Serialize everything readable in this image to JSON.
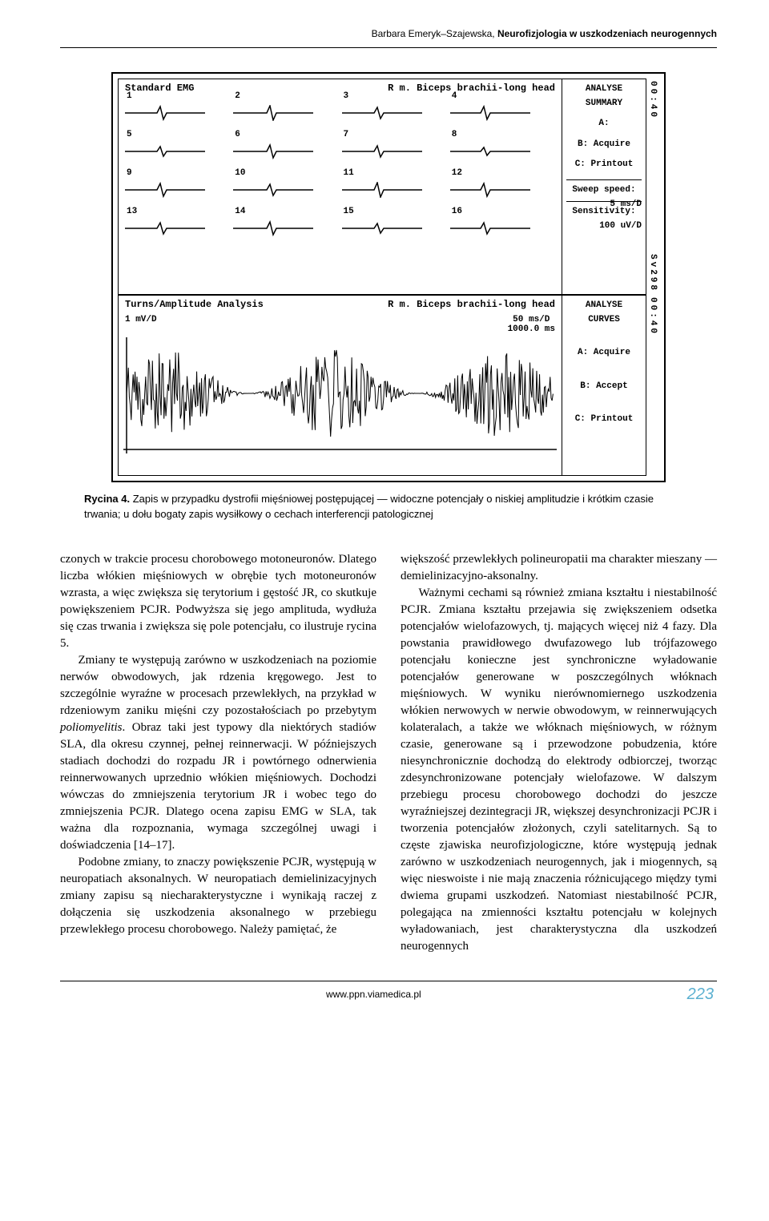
{
  "header": {
    "author": "Barbara Emeryk–Szajewska, ",
    "title": "Neurofizjologia w uszkodzeniach neurogennych"
  },
  "figure": {
    "top_panel": {
      "left_label": "Standard EMG",
      "right_label": "R m. Biceps brachii-long head",
      "side_time": "00:40",
      "side": {
        "l1": "ANALYSE",
        "l2": "SUMMARY",
        "l3": "A:",
        "l4": "B: Acquire",
        "l5": "C: Printout",
        "l6": "Sweep speed:",
        "l6b": "5 ms/D",
        "l7": "Sensitivity:",
        "l7b": "100 uV/D"
      },
      "side_bot_time": "Sv298",
      "rows": [
        [
          "1",
          "2",
          "3",
          "4"
        ],
        [
          "5",
          "6",
          "7",
          "8"
        ],
        [
          "9",
          "10",
          "11",
          "12"
        ],
        [
          "13",
          "14",
          "15",
          "16"
        ]
      ]
    },
    "bot_panel": {
      "left_label": "Turns/Amplitude Analysis",
      "right_label": "R m. Biceps brachii-long head",
      "sub_left": "1 mV/D",
      "sub_right": "50 ms/D",
      "sub_right2": "1000.0 ms",
      "side_time": "00:40",
      "side": {
        "l1": "ANALYSE",
        "l2": "CURVES",
        "l3": "A: Acquire",
        "l4": "B: Accept",
        "l5": "C: Printout"
      }
    },
    "caption_label": "Rycina 4.",
    "caption_text": " Zapis w przypadku dystrofii mięśniowej postępującej — widoczne potencjały o niskiej amplitudzie i krótkim czasie trwania; u dołu bogaty zapis wysiłkowy o cechach interferencji patologicznej"
  },
  "body": {
    "left": {
      "p1": "czonych w trakcie procesu chorobowego motoneuronów. Dlatego liczba włókien mięśniowych w obrębie tych motoneuronów wzrasta, a więc zwiększa się terytorium i gęstość JR, co skutkuje powiększeniem PCJR. Podwyższa się jego amplituda, wydłuża się czas trwania i zwiększa się pole potencjału, co ilustruje rycina 5.",
      "p2a": "Zmiany te występują zarówno w uszkodzeniach na poziomie nerwów obwodowych, jak rdzenia kręgowego. Jest to szczególnie wyraźne w procesach przewlekłych, na przykład w rdzeniowym zaniku mięśni czy pozostałościach po przebytym ",
      "p2i": "poliomyelitis",
      "p2b": ". Obraz taki jest typowy dla niektórych stadiów SLA, dla okresu czynnej, pełnej reinnerwacji. W późniejszych stadiach dochodzi do rozpadu JR i powtórnego odnerwienia reinnerwowanych uprzednio włókien mięśniowych. Dochodzi wówczas do zmniejszenia terytorium JR i wobec tego do zmniejszenia PCJR. Dlatego ocena zapisu EMG w SLA, tak ważna dla rozpoznania, wymaga szczególnej uwagi i doświadczenia [14–17].",
      "p3": "Podobne zmiany, to znaczy powiększenie PCJR, występują w neuropatiach aksonalnych. W neuropatiach demielinizacyjnych zmiany zapisu są niecharakterystyczne i wynikają raczej z dołączenia się uszkodzenia aksonalnego w przebiegu przewlekłego procesu chorobowego. Należy pamiętać, że"
    },
    "right": {
      "p1": "większość przewlekłych polineuropatii ma charakter mieszany — demielinizacyjno-aksonalny.",
      "p2": "Ważnymi cechami są również zmiana kształtu i niestabilność PCJR. Zmiana kształtu przejawia się zwiększeniem odsetka potencjałów wielofazowych, tj. mających więcej niż 4 fazy. Dla powstania prawidłowego dwufazowego lub trójfazowego potencjału konieczne jest synchroniczne wyładowanie potencjałów generowane w poszczególnych włóknach mięśniowych. W wyniku nierównomiernego uszkodzenia włókien nerwowych w nerwie obwodowym, w reinnerwujących kolateralach, a także we włóknach mięśniowych, w różnym czasie, generowane są i przewodzone pobudzenia, które niesynchronicznie dochodzą do elektrody odbiorczej, tworząc zdesynchronizowane potencjały wielofazowe. W dalszym przebiegu procesu chorobowego dochodzi do jeszcze wyraźniejszej dezintegracji JR, większej desynchronizacji PCJR i tworzenia potencjałów złożonych, czyli satelitarnych. Są to częste zjawiska neurofizjologiczne, które występują jednak zarówno w uszkodzeniach neurogennych, jak i miogennych, są więc nieswoiste i nie mają znaczenia różnicującego między tymi dwiema grupami uszkodzeń. Natomiast niestabilność PCJR, polegająca na zmienności kształtu potencjału w kolejnych wyładowaniach, jest charakterystyczna dla uszkodzeń neurogennych"
    }
  },
  "footer": {
    "url": "www.ppn.viamedica.pl",
    "page": "223"
  }
}
